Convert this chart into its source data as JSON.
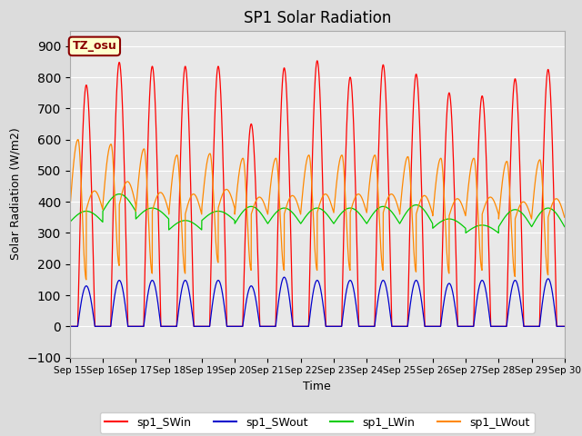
{
  "title": "SP1 Solar Radiation",
  "xlabel": "Time",
  "ylabel": "Solar Radiation (W/m2)",
  "ylim": [
    -100,
    950
  ],
  "yticks": [
    -100,
    0,
    100,
    200,
    300,
    400,
    500,
    600,
    700,
    800,
    900
  ],
  "n_days": 15,
  "points_per_day": 288,
  "sw_in_peaks": [
    775,
    848,
    835,
    835,
    835,
    650,
    830,
    853,
    800,
    840,
    810,
    750,
    740,
    795,
    825
  ],
  "sw_out_peaks": [
    130,
    148,
    148,
    148,
    148,
    130,
    158,
    148,
    148,
    148,
    148,
    138,
    148,
    148,
    153
  ],
  "lw_in_base": [
    335,
    370,
    345,
    310,
    340,
    330,
    330,
    330,
    330,
    330,
    330,
    315,
    300,
    320,
    320
  ],
  "lw_in_day_amp": [
    35,
    55,
    35,
    30,
    30,
    55,
    50,
    50,
    50,
    55,
    60,
    30,
    25,
    55,
    60
  ],
  "lw_out_base": [
    375,
    390,
    370,
    360,
    380,
    360,
    360,
    365,
    365,
    365,
    360,
    355,
    360,
    345,
    350
  ],
  "lw_out_day_amp": [
    60,
    75,
    60,
    65,
    60,
    55,
    60,
    60,
    60,
    60,
    60,
    55,
    55,
    55,
    60
  ],
  "lw_out_early_peak": [
    600,
    585,
    570,
    550,
    555,
    540,
    540,
    550,
    550,
    550,
    545,
    540,
    540,
    530,
    535
  ],
  "colors": {
    "sw_in": "#FF0000",
    "sw_out": "#0000CC",
    "lw_in": "#00CC00",
    "lw_out": "#FF8800"
  },
  "legend_labels": [
    "sp1_SWin",
    "sp1_SWout",
    "sp1_LWin",
    "sp1_LWout"
  ],
  "annotation_text": "TZ_osu",
  "annotation_color": "#8B0000",
  "annotation_bg": "#FFFFCC",
  "plot_bg_color": "#E8E8E8",
  "fig_bg": "#DCDCDC",
  "xtick_labels": [
    "Sep 15",
    "Sep 16",
    "Sep 17",
    "Sep 18",
    "Sep 19",
    "Sep 20",
    "Sep 21",
    "Sep 22",
    "Sep 23",
    "Sep 24",
    "Sep 25",
    "Sep 26",
    "Sep 27",
    "Sep 28",
    "Sep 29",
    "Sep 30"
  ]
}
